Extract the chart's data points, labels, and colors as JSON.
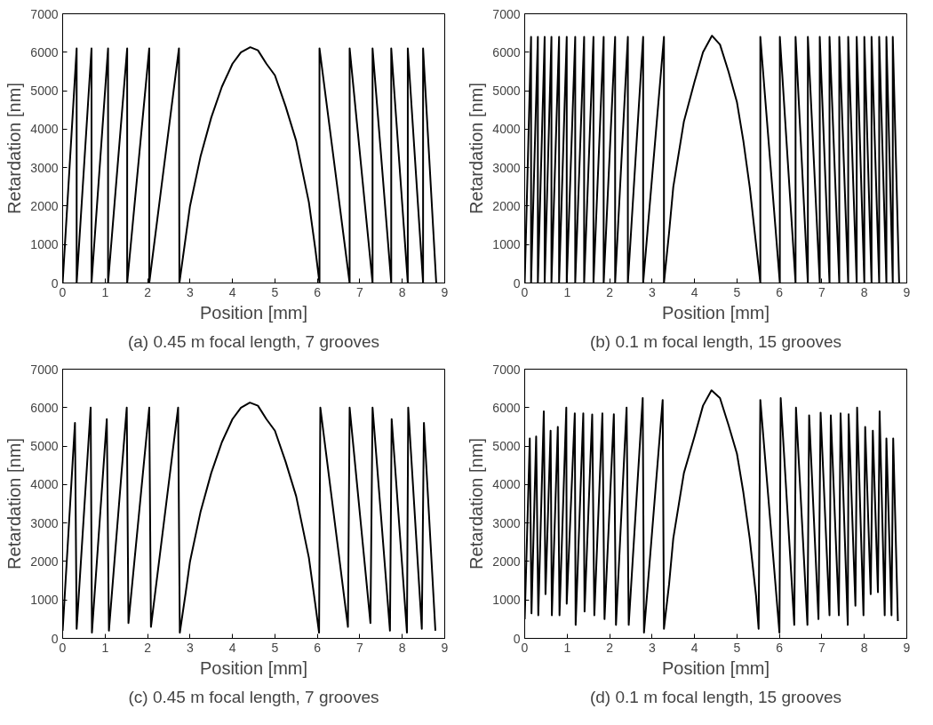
{
  "chart_data": [
    {
      "type": "line",
      "title": "(a) 0.45 m focal length, 7 grooves",
      "xlabel": "Position [mm]",
      "ylabel": "Retardation [nm]",
      "xlim": [
        0,
        9
      ],
      "ylim": [
        0,
        7000
      ],
      "xticks": [
        0,
        1,
        2,
        3,
        4,
        5,
        6,
        7,
        8,
        9
      ],
      "yticks": [
        0,
        1000,
        2000,
        3000,
        4000,
        5000,
        6000,
        7000
      ],
      "grid": false,
      "series": [
        {
          "color": "#000000",
          "x": [
            0,
            0.33,
            0.33,
            0.68,
            0.68,
            1.07,
            1.07,
            1.52,
            1.52,
            2.04,
            2.04,
            2.74,
            2.75,
            2.9,
            3.0,
            3.25,
            3.5,
            3.75,
            4.0,
            4.2,
            4.42,
            4.6,
            4.8,
            5.0,
            5.25,
            5.5,
            5.8,
            5.95,
            6.05,
            6.05,
            6.76,
            6.76,
            7.3,
            7.3,
            7.74,
            7.74,
            8.13,
            8.13,
            8.49,
            8.49,
            8.8
          ],
          "values": [
            0,
            6100,
            0,
            6100,
            0,
            6100,
            0,
            6100,
            0,
            6100,
            0,
            6100,
            0,
            1200,
            2000,
            3300,
            4300,
            5100,
            5700,
            6000,
            6130,
            6050,
            5700,
            5400,
            4600,
            3700,
            2100,
            900,
            0,
            6100,
            0,
            6100,
            0,
            6100,
            0,
            6100,
            0,
            6100,
            0,
            6100,
            0
          ]
        }
      ]
    },
    {
      "type": "line",
      "title": "(b) 0.1 m focal length, 15 grooves",
      "xlabel": "Position [mm]",
      "ylabel": "Retardation [nm]",
      "xlim": [
        0,
        9
      ],
      "ylim": [
        0,
        7000
      ],
      "xticks": [
        0,
        1,
        2,
        3,
        4,
        5,
        6,
        7,
        8,
        9
      ],
      "yticks": [
        0,
        1000,
        2000,
        3000,
        4000,
        5000,
        6000,
        7000
      ],
      "grid": false,
      "series": [
        {
          "color": "#000000",
          "x": [
            0,
            0.15,
            0.15,
            0.31,
            0.31,
            0.47,
            0.47,
            0.63,
            0.63,
            0.81,
            0.81,
            0.99,
            0.99,
            1.19,
            1.19,
            1.4,
            1.4,
            1.62,
            1.62,
            1.86,
            1.86,
            2.13,
            2.13,
            2.43,
            2.43,
            2.79,
            2.79,
            3.28,
            3.28,
            3.4,
            3.5,
            3.75,
            4.0,
            4.2,
            4.41,
            4.6,
            4.8,
            5.0,
            5.15,
            5.3,
            5.45,
            5.55,
            5.55,
            6.01,
            6.01,
            6.38,
            6.38,
            6.67,
            6.67,
            6.95,
            6.95,
            7.18,
            7.18,
            7.41,
            7.41,
            7.62,
            7.62,
            7.82,
            7.82,
            8.0,
            8.0,
            8.17,
            8.17,
            8.35,
            8.35,
            8.52,
            8.52,
            8.67,
            8.67,
            8.82
          ],
          "values": [
            0,
            6400,
            0,
            6400,
            0,
            6400,
            0,
            6400,
            0,
            6400,
            0,
            6400,
            0,
            6400,
            0,
            6400,
            0,
            6400,
            0,
            6400,
            0,
            6400,
            0,
            6400,
            0,
            6400,
            0,
            6400,
            0,
            1300,
            2500,
            4200,
            5230,
            6000,
            6430,
            6200,
            5500,
            4700,
            3700,
            2500,
            1000,
            0,
            6400,
            0,
            6400,
            0,
            6400,
            0,
            6400,
            0,
            6400,
            0,
            6400,
            0,
            6400,
            0,
            6400,
            0,
            6400,
            0,
            6400,
            0,
            6400,
            0,
            6400,
            0,
            6400,
            0,
            6400,
            0
          ]
        }
      ]
    },
    {
      "type": "line",
      "title": "(c) 0.45 m focal length, 7 grooves",
      "xlabel": "Position [mm]",
      "ylabel": "Retardation [nm]",
      "xlim": [
        0,
        9
      ],
      "ylim": [
        0,
        7000
      ],
      "xticks": [
        0,
        1,
        2,
        3,
        4,
        5,
        6,
        7,
        8,
        9
      ],
      "yticks": [
        0,
        1000,
        2000,
        3000,
        4000,
        5000,
        6000,
        7000
      ],
      "grid": false,
      "series": [
        {
          "color": "#000000",
          "x": [
            0,
            0.29,
            0.33,
            0.66,
            0.69,
            1.04,
            1.09,
            1.51,
            1.55,
            2.04,
            2.08,
            2.72,
            2.76,
            2.9,
            3.0,
            3.25,
            3.5,
            3.75,
            4.0,
            4.2,
            4.41,
            4.6,
            4.8,
            5.0,
            5.25,
            5.5,
            5.8,
            5.95,
            6.04,
            6.07,
            6.72,
            6.76,
            7.25,
            7.3,
            7.71,
            7.75,
            8.11,
            8.14,
            8.46,
            8.51,
            8.78
          ],
          "values": [
            200,
            5600,
            250,
            6000,
            150,
            5700,
            200,
            6000,
            400,
            6000,
            300,
            6000,
            150,
            1200,
            2000,
            3300,
            4300,
            5100,
            5700,
            6000,
            6130,
            6050,
            5700,
            5400,
            4600,
            3700,
            2100,
            900,
            150,
            6000,
            300,
            6000,
            400,
            6000,
            200,
            5700,
            150,
            6000,
            250,
            5600,
            200
          ]
        }
      ]
    },
    {
      "type": "line",
      "title": "(d) 0.1 m focal length, 15 grooves",
      "xlabel": "Position [mm]",
      "ylabel": "Retardation [nm]",
      "xlim": [
        0,
        9
      ],
      "ylim": [
        0,
        7000
      ],
      "xticks": [
        0,
        1,
        2,
        3,
        4,
        5,
        6,
        7,
        8,
        9
      ],
      "yticks": [
        0,
        1000,
        2000,
        3000,
        4000,
        5000,
        6000,
        7000
      ],
      "grid": false,
      "series": [
        {
          "color": "#000000",
          "x": [
            0,
            0.12,
            0.16,
            0.27,
            0.32,
            0.45,
            0.49,
            0.61,
            0.64,
            0.78,
            0.82,
            0.98,
            0.99,
            1.18,
            1.2,
            1.38,
            1.41,
            1.59,
            1.64,
            1.83,
            1.88,
            2.1,
            2.15,
            2.4,
            2.45,
            2.78,
            2.81,
            3.25,
            3.28,
            3.4,
            3.5,
            3.75,
            4.0,
            4.2,
            4.4,
            4.6,
            4.8,
            5.0,
            5.15,
            5.3,
            5.45,
            5.51,
            5.55,
            6.0,
            6.03,
            6.35,
            6.39,
            6.66,
            6.7,
            6.92,
            6.97,
            7.18,
            7.21,
            7.4,
            7.44,
            7.61,
            7.63,
            7.79,
            7.83,
            7.98,
            8.02,
            8.15,
            8.2,
            8.32,
            8.36,
            8.48,
            8.52,
            8.64,
            8.68,
            8.79
          ],
          "values": [
            500,
            5200,
            650,
            5250,
            600,
            5900,
            1150,
            5400,
            600,
            5500,
            600,
            6000,
            900,
            5850,
            350,
            5850,
            700,
            5820,
            600,
            5850,
            500,
            5830,
            350,
            6000,
            350,
            6250,
            150,
            6200,
            250,
            1400,
            2600,
            4300,
            5250,
            6050,
            6450,
            6250,
            5550,
            4800,
            3800,
            2600,
            1100,
            250,
            6200,
            150,
            6250,
            350,
            6000,
            350,
            5800,
            500,
            5870,
            600,
            5800,
            600,
            5850,
            350,
            5830,
            850,
            6000,
            600,
            5500,
            1150,
            5400,
            1200,
            5900,
            600,
            5200,
            600,
            5200,
            450
          ]
        }
      ]
    }
  ]
}
